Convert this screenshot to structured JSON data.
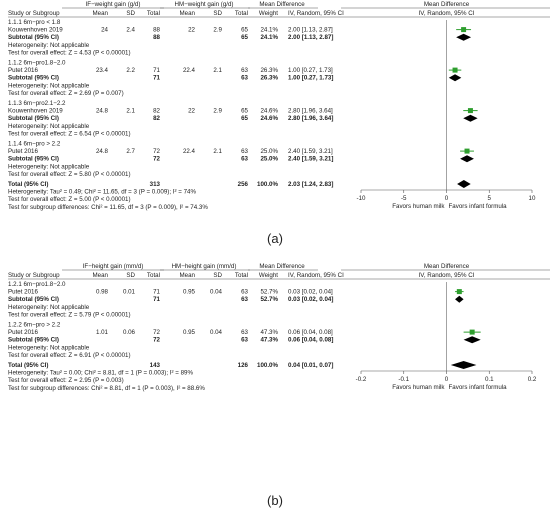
{
  "chart_data": [
    {
      "type": "forest",
      "panel_label": "(a)",
      "header": {
        "group1": "IF−weight gain (g/d)",
        "group2": "HM−weight gain (g/d)",
        "col_md": "Mean Difference",
        "col_md_sub": "IV, Random, 95% CI",
        "plot_title": "Mean Difference",
        "plot_sub": "IV, Random, 95% CI",
        "study": "Study or Subgroup",
        "mean": "Mean",
        "sd": "SD",
        "total": "Total",
        "weight": "Weight"
      },
      "subgroups": [
        {
          "title": "1.1.1 6m−pro < 1.8",
          "studies": [
            {
              "name": "Kouwenhoven 2019",
              "m1": "24",
              "sd1": "2.4",
              "n1": "88",
              "m2": "22",
              "sd2": "2.9",
              "n2": "65",
              "weight": "24.1%",
              "ci_text": "2.00 [1.13, 2.87]",
              "est": 2.0,
              "lo": 1.13,
              "hi": 2.87
            }
          ],
          "subtotal": {
            "label": "Subtotal (95% CI)",
            "n1": "88",
            "n2": "65",
            "weight": "24.1%",
            "ci_text": "2.00 [1.13, 2.87]",
            "est": 2.0,
            "lo": 1.13,
            "hi": 2.87
          },
          "heterogeneity": "Heterogeneity: Not applicable",
          "overall": "Test for overall effect: Z = 4.53 (P < 0.00001)"
        },
        {
          "title": "1.1.2 6m−pro1.8−2.0",
          "studies": [
            {
              "name": "Putet 2016",
              "m1": "23.4",
              "sd1": "2.2",
              "n1": "71",
              "m2": "22.4",
              "sd2": "2.1",
              "n2": "63",
              "weight": "26.3%",
              "ci_text": "1.00 [0.27, 1.73]",
              "est": 1.0,
              "lo": 0.27,
              "hi": 1.73
            }
          ],
          "subtotal": {
            "label": "Subtotal (95% CI)",
            "n1": "71",
            "n2": "63",
            "weight": "26.3%",
            "ci_text": "1.00 [0.27, 1.73]",
            "est": 1.0,
            "lo": 0.27,
            "hi": 1.73
          },
          "heterogeneity": "Heterogeneity: Not applicable",
          "overall": "Test for overall effect: Z = 2.69 (P = 0.007)"
        },
        {
          "title": "1.1.3 6m−pro2.1−2.2",
          "studies": [
            {
              "name": "Kouwenhoven 2019",
              "m1": "24.8",
              "sd1": "2.1",
              "n1": "82",
              "m2": "22",
              "sd2": "2.9",
              "n2": "65",
              "weight": "24.6%",
              "ci_text": "2.80 [1.96, 3.64]",
              "est": 2.8,
              "lo": 1.96,
              "hi": 3.64
            }
          ],
          "subtotal": {
            "label": "Subtotal (95% CI)",
            "n1": "82",
            "n2": "65",
            "weight": "24.6%",
            "ci_text": "2.80 [1.96, 3.64]",
            "est": 2.8,
            "lo": 1.96,
            "hi": 3.64
          },
          "heterogeneity": "Heterogeneity: Not applicable",
          "overall": "Test for overall effect: Z = 6.54 (P < 0.00001)"
        },
        {
          "title": "1.1.4 6m−pro > 2.2",
          "studies": [
            {
              "name": "Putet 2016",
              "m1": "24.8",
              "sd1": "2.7",
              "n1": "72",
              "m2": "22.4",
              "sd2": "2.1",
              "n2": "63",
              "weight": "25.0%",
              "ci_text": "2.40 [1.59, 3.21]",
              "est": 2.4,
              "lo": 1.59,
              "hi": 3.21
            }
          ],
          "subtotal": {
            "label": "Subtotal (95% CI)",
            "n1": "72",
            "n2": "63",
            "weight": "25.0%",
            "ci_text": "2.40 [1.59, 3.21]",
            "est": 2.4,
            "lo": 1.59,
            "hi": 3.21
          },
          "heterogeneity": "Heterogeneity: Not applicable",
          "overall": "Test for overall effect: Z = 5.80 (P < 0.00001)"
        }
      ],
      "total": {
        "label": "Total (95% CI)",
        "n1": "313",
        "n2": "256",
        "weight": "100.0%",
        "ci_text": "2.03 [1.24, 2.83]",
        "est": 2.03,
        "lo": 1.24,
        "hi": 2.83
      },
      "footer": [
        "Heterogeneity: Tau² = 0.49; Chi² = 11.65, df = 3 (P = 0.009); I² = 74%",
        "Test for overall effect: Z = 5.00 (P < 0.00001)",
        "Test for subgroup differences: Chi² = 11.65, df = 3 (P = 0.009), I² = 74.3%"
      ],
      "axis": {
        "min": -10,
        "max": 10,
        "ticks": [
          -10,
          -5,
          0,
          5,
          10
        ],
        "tick_labels": [
          "-10",
          "-5",
          "0",
          "5",
          "10"
        ]
      },
      "favors_left": "Favors human milk",
      "favors_right": "Favors infant formula",
      "colors": {
        "square": "#2e9e2e",
        "ci": "#2e9e2e",
        "diamond": "#000000"
      }
    },
    {
      "type": "forest",
      "panel_label": "(b)",
      "header": {
        "group1": "IF−height gain (mm/d)",
        "group2": "HM−height gain (mm/d)",
        "col_md": "Mean Difference",
        "col_md_sub": "IV, Random, 95% CI",
        "plot_title": "Mean Difference",
        "plot_sub": "IV, Random, 95% CI",
        "study": "Study or Subgroup",
        "mean": "Mean",
        "sd": "SD",
        "total": "Total",
        "weight": "Weight"
      },
      "subgroups": [
        {
          "title": "1.2.1 6m−pro1.8−2.0",
          "studies": [
            {
              "name": "Putet 2016",
              "m1": "0.98",
              "sd1": "0.01",
              "n1": "71",
              "m2": "0.95",
              "sd2": "0.04",
              "n2": "63",
              "weight": "52.7%",
              "ci_text": "0.03 [0.02, 0.04]",
              "est": 0.03,
              "lo": 0.02,
              "hi": 0.04
            }
          ],
          "subtotal": {
            "label": "Subtotal (95% CI)",
            "n1": "71",
            "n2": "63",
            "weight": "52.7%",
            "ci_text": "0.03 [0.02, 0.04]",
            "est": 0.03,
            "lo": 0.02,
            "hi": 0.04
          },
          "heterogeneity": "Heterogeneity: Not applicable",
          "overall": "Test for overall effect: Z = 5.79 (P < 0.00001)"
        },
        {
          "title": "1.2.2 6m−pro > 2.2",
          "studies": [
            {
              "name": "Putet 2016",
              "m1": "1.01",
              "sd1": "0.06",
              "n1": "72",
              "m2": "0.95",
              "sd2": "0.04",
              "n2": "63",
              "weight": "47.3%",
              "ci_text": "0.06 [0.04, 0.08]",
              "est": 0.06,
              "lo": 0.04,
              "hi": 0.08
            }
          ],
          "subtotal": {
            "label": "Subtotal (95% CI)",
            "n1": "72",
            "n2": "63",
            "weight": "47.3%",
            "ci_text": "0.06 [0.04, 0.08]",
            "est": 0.06,
            "lo": 0.04,
            "hi": 0.08
          },
          "heterogeneity": "Heterogeneity: Not applicable",
          "overall": "Test for overall effect: Z = 6.91 (P < 0.00001)"
        }
      ],
      "total": {
        "label": "Total (95% CI)",
        "n1": "143",
        "n2": "126",
        "weight": "100.0%",
        "ci_text": "0.04 [0.01, 0.07]",
        "est": 0.04,
        "lo": 0.01,
        "hi": 0.07
      },
      "footer": [
        "Heterogeneity: Tau² = 0.00; Chi² = 8.81, df = 1 (P = 0.003); I² = 89%",
        "Test for overall effect: Z = 2.95 (P = 0.003)",
        "Test for subgroup differences: Chi² = 8.81, df = 1 (P = 0.003), I² = 88.6%"
      ],
      "axis": {
        "min": -0.2,
        "max": 0.2,
        "ticks": [
          -0.2,
          -0.1,
          0,
          0.1,
          0.2
        ],
        "tick_labels": [
          "-0.2",
          "-0.1",
          "0",
          "0.1",
          "0.2"
        ]
      },
      "favors_left": "Favors human milk",
      "favors_right": "Favors infant formula",
      "colors": {
        "square": "#2e9e2e",
        "ci": "#2e9e2e",
        "diamond": "#000000"
      }
    }
  ]
}
